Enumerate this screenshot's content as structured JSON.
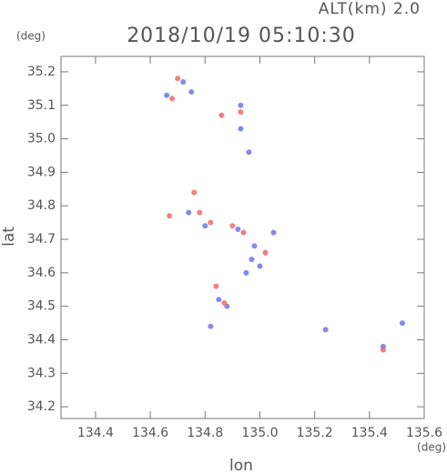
{
  "chart_data": {
    "type": "scatter",
    "title": "2018/10/19 05:10:30",
    "subtitle": "ALT(km) 2.0",
    "y_unit": "(deg)",
    "x_unit": "(deg)",
    "x_label": "lon",
    "y_label": "lat",
    "xlim": [
      134.274,
      135.6
    ],
    "ylim": [
      34.165,
      35.246
    ],
    "xticks": [
      134.4,
      134.6,
      134.8,
      {
        "value": 135.0,
        "label": "135.0"
      },
      135.2,
      135.4,
      135.6
    ],
    "yticks": [
      34.2,
      34.3,
      34.4,
      34.5,
      34.6,
      34.7,
      34.8,
      34.9,
      {
        "value": 35.0,
        "label": "35.0"
      },
      35.1,
      35.2
    ],
    "series": [
      {
        "color": "#6f74e8",
        "x": [
          134.66,
          134.72,
          134.75,
          134.93,
          134.93,
          134.96,
          134.74,
          134.8,
          134.92,
          134.98,
          135.0,
          134.95,
          134.85,
          134.88,
          134.82,
          135.24,
          135.52,
          135.45,
          134.97,
          135.05
        ],
        "values": [
          35.13,
          35.17,
          35.14,
          35.1,
          35.03,
          34.96,
          34.78,
          34.74,
          34.73,
          34.68,
          34.62,
          34.6,
          34.52,
          34.5,
          34.44,
          34.43,
          34.45,
          34.38,
          34.64,
          34.72
        ]
      },
      {
        "color": "#ee6a6a",
        "x": [
          134.7,
          134.68,
          134.86,
          134.93,
          134.76,
          134.78,
          134.67,
          134.9,
          134.94,
          134.87,
          134.84,
          135.45,
          134.82,
          135.02
        ],
        "values": [
          35.18,
          35.12,
          35.07,
          35.08,
          34.84,
          34.78,
          34.77,
          34.74,
          34.72,
          34.51,
          34.56,
          34.37,
          34.75,
          34.66
        ]
      }
    ]
  }
}
